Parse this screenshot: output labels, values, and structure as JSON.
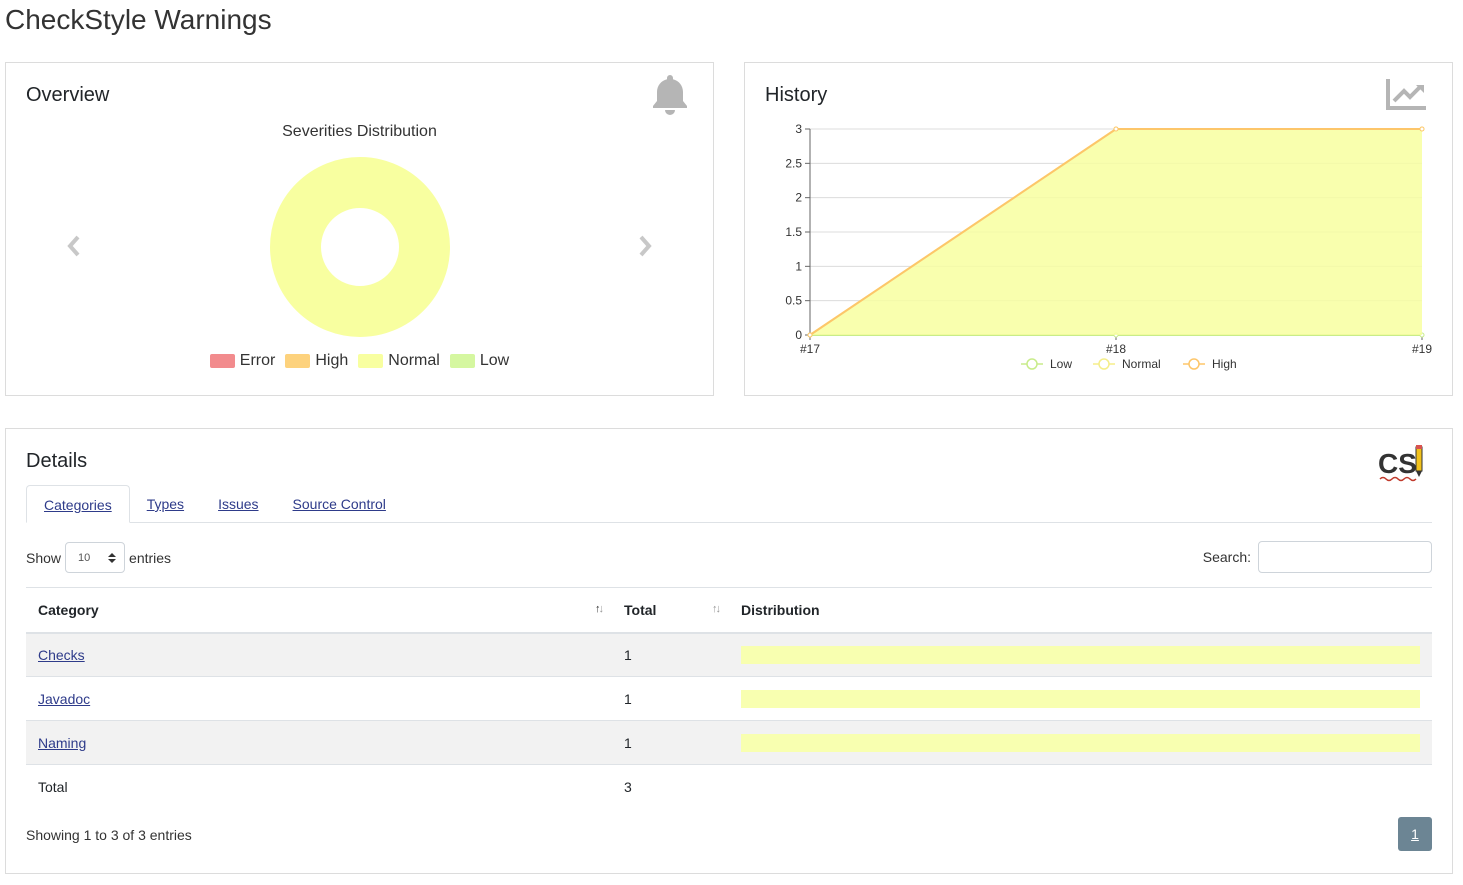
{
  "page": {
    "title": "CheckStyle Warnings"
  },
  "overview": {
    "title": "Overview",
    "chart_title": "Severities Distribution",
    "legend": [
      {
        "label": "Error",
        "color": "#f28b8d"
      },
      {
        "label": "High",
        "color": "#fdd27d"
      },
      {
        "label": "Normal",
        "color": "#f8ffa0"
      },
      {
        "label": "Low",
        "color": "#d5f7a0"
      }
    ]
  },
  "history": {
    "title": "History"
  },
  "details": {
    "title": "Details",
    "tabs": [
      "Categories",
      "Types",
      "Issues",
      "Source Control"
    ],
    "show_label": "Show",
    "entries_value": "10",
    "entries_label": "entries",
    "search_label": "Search:",
    "search_value": "",
    "columns": [
      "Category",
      "Total",
      "Distribution"
    ],
    "rows": [
      {
        "category": "Checks",
        "total": "1",
        "normal_fraction": 1.0
      },
      {
        "category": "Javadoc",
        "total": "1",
        "normal_fraction": 1.0
      },
      {
        "category": "Naming",
        "total": "1",
        "normal_fraction": 1.0
      }
    ],
    "footer": {
      "label": "Total",
      "total": "3"
    },
    "showing_text": "Showing 1 to 3 of 3 entries",
    "page_number": "1"
  },
  "chart_data": [
    {
      "type": "pie",
      "title": "Severities Distribution",
      "categories": [
        "Error",
        "High",
        "Normal",
        "Low"
      ],
      "values": [
        0,
        0,
        3,
        0
      ],
      "colors": [
        "#f28b8d",
        "#fdd27d",
        "#f8ffa0",
        "#d5f7a0"
      ],
      "donut": true,
      "legend": "bottom"
    },
    {
      "type": "area",
      "x": [
        "#17",
        "#18",
        "#19"
      ],
      "series": [
        {
          "name": "Low",
          "values": [
            0,
            0,
            0
          ],
          "color": "#d5f7a0"
        },
        {
          "name": "Normal",
          "values": [
            0,
            3,
            3
          ],
          "color": "#f8ffa0"
        },
        {
          "name": "High",
          "values": [
            0,
            0,
            0
          ],
          "color": "#fdd27d"
        }
      ],
      "stacked": true,
      "ylim": [
        0,
        3
      ],
      "yticks": [
        "0",
        "0.5",
        "1",
        "1.5",
        "2",
        "2.5",
        "3"
      ],
      "grid": true,
      "legend": "bottom"
    }
  ]
}
